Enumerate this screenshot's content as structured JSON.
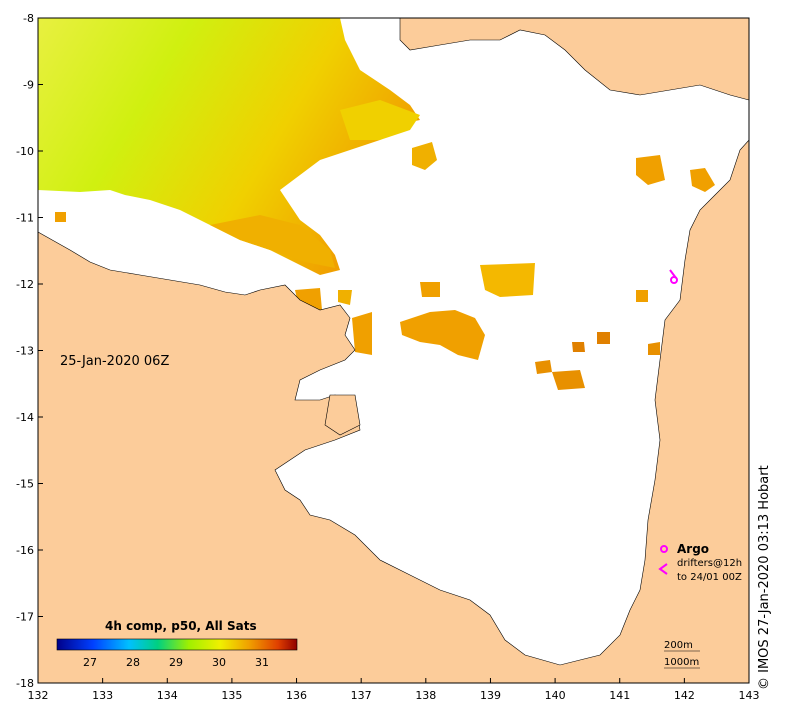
{
  "map": {
    "timestamp": "25-Jan-2020 06Z",
    "colorbar": {
      "title": "4h comp, p50, All Sats",
      "ticks": [
        "27",
        "28",
        "29",
        "30",
        "31"
      ]
    },
    "legend": {
      "argo_label": "Argo",
      "drifters_line1": "drifters@12h",
      "drifters_line2": "to 24/01 00Z"
    },
    "scale": {
      "line1": "200m",
      "line2": "1000m"
    },
    "credit": "© IMOS 27-Jan-2020 03:13 Hobart",
    "x_ticks": [
      "132",
      "133",
      "134",
      "135",
      "136",
      "137",
      "138",
      "139",
      "140",
      "141",
      "142",
      "143"
    ],
    "y_ticks": [
      "-8",
      "-9",
      "-10",
      "-11",
      "-12",
      "-13",
      "-14",
      "-15",
      "-16",
      "-17",
      "-18"
    ],
    "colors": {
      "land": "#fccc9a",
      "ocean_no_data": "#ffffff",
      "sst_warm": "#f0a000",
      "sst_mid": "#f4d000",
      "sst_cool": "#d8f000",
      "argo": "#ff00ff"
    }
  }
}
